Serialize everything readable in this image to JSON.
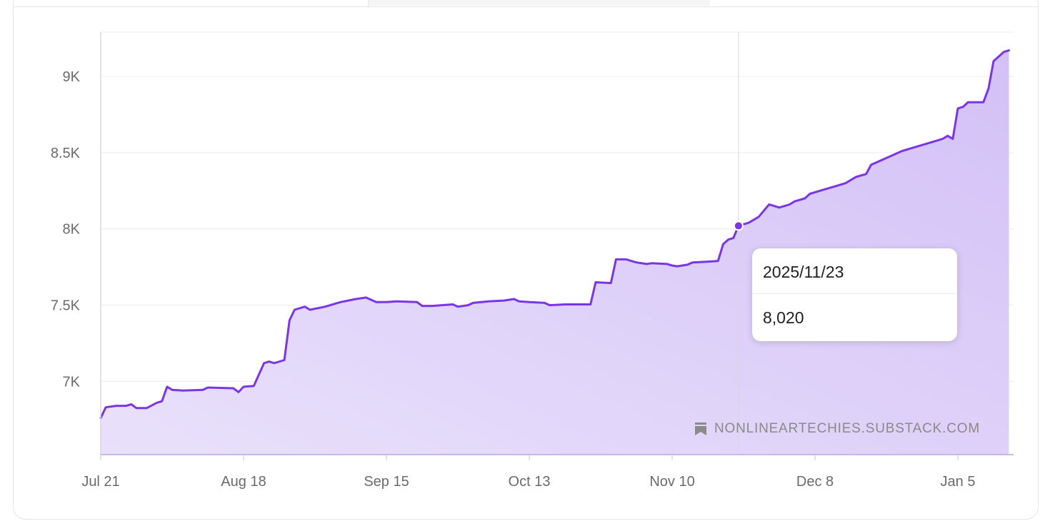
{
  "chart_data": {
    "type": "area",
    "x_tick_labels": [
      "Jul 21",
      "Aug 18",
      "Sep 15",
      "Oct 13",
      "Nov 10",
      "Dec 8",
      "Jan 5"
    ],
    "y_tick_labels": [
      "7K",
      "7.5K",
      "8K",
      "8.5K",
      "9K"
    ],
    "y_ticks": [
      7000,
      7500,
      8000,
      8500,
      9000
    ],
    "ylim": [
      6520,
      9290
    ],
    "x_start": "2025-07-21",
    "x_end": "2026-01-15",
    "grid": true,
    "series": [
      {
        "color": "#7a35e6",
        "fill": "#ddd0f8",
        "points": [
          [
            "2025-07-21",
            6760
          ],
          [
            "2025-07-22",
            6830
          ],
          [
            "2025-07-24",
            6840
          ],
          [
            "2025-07-26",
            6840
          ],
          [
            "2025-07-27",
            6850
          ],
          [
            "2025-07-28",
            6825
          ],
          [
            "2025-07-30",
            6825
          ],
          [
            "2025-08-01",
            6860
          ],
          [
            "2025-08-02",
            6870
          ],
          [
            "2025-08-03",
            6965
          ],
          [
            "2025-08-04",
            6945
          ],
          [
            "2025-08-06",
            6940
          ],
          [
            "2025-08-10",
            6945
          ],
          [
            "2025-08-11",
            6960
          ],
          [
            "2025-08-16",
            6955
          ],
          [
            "2025-08-17",
            6930
          ],
          [
            "2025-08-18",
            6965
          ],
          [
            "2025-08-20",
            6970
          ],
          [
            "2025-08-22",
            7120
          ],
          [
            "2025-08-23",
            7130
          ],
          [
            "2025-08-24",
            7120
          ],
          [
            "2025-08-26",
            7140
          ],
          [
            "2025-08-27",
            7400
          ],
          [
            "2025-08-28",
            7470
          ],
          [
            "2025-08-30",
            7490
          ],
          [
            "2025-08-31",
            7470
          ],
          [
            "2025-09-03",
            7490
          ],
          [
            "2025-09-06",
            7520
          ],
          [
            "2025-09-09",
            7540
          ],
          [
            "2025-09-11",
            7550
          ],
          [
            "2025-09-12",
            7535
          ],
          [
            "2025-09-13",
            7520
          ],
          [
            "2025-09-15",
            7520
          ],
          [
            "2025-09-17",
            7525
          ],
          [
            "2025-09-21",
            7520
          ],
          [
            "2025-09-22",
            7495
          ],
          [
            "2025-09-24",
            7495
          ],
          [
            "2025-09-28",
            7505
          ],
          [
            "2025-09-29",
            7490
          ],
          [
            "2025-10-01",
            7500
          ],
          [
            "2025-10-02",
            7515
          ],
          [
            "2025-10-05",
            7525
          ],
          [
            "2025-10-08",
            7530
          ],
          [
            "2025-10-10",
            7540
          ],
          [
            "2025-10-11",
            7525
          ],
          [
            "2025-10-13",
            7520
          ],
          [
            "2025-10-16",
            7515
          ],
          [
            "2025-10-17",
            7500
          ],
          [
            "2025-10-20",
            7505
          ],
          [
            "2025-10-25",
            7505
          ],
          [
            "2025-10-26",
            7650
          ],
          [
            "2025-10-29",
            7645
          ],
          [
            "2025-10-30",
            7800
          ],
          [
            "2025-11-01",
            7800
          ],
          [
            "2025-11-03",
            7780
          ],
          [
            "2025-11-05",
            7770
          ],
          [
            "2025-11-06",
            7775
          ],
          [
            "2025-11-09",
            7770
          ],
          [
            "2025-11-10",
            7760
          ],
          [
            "2025-11-11",
            7755
          ],
          [
            "2025-11-13",
            7765
          ],
          [
            "2025-11-14",
            7780
          ],
          [
            "2025-11-17",
            7785
          ],
          [
            "2025-11-19",
            7790
          ],
          [
            "2025-11-20",
            7900
          ],
          [
            "2025-11-21",
            7930
          ],
          [
            "2025-11-22",
            7940
          ],
          [
            "2025-11-23",
            8020
          ],
          [
            "2025-11-25",
            8040
          ],
          [
            "2025-11-26",
            8060
          ],
          [
            "2025-11-27",
            8080
          ],
          [
            "2025-11-29",
            8160
          ],
          [
            "2025-11-30",
            8150
          ],
          [
            "2025-12-01",
            8140
          ],
          [
            "2025-12-03",
            8160
          ],
          [
            "2025-12-04",
            8180
          ],
          [
            "2025-12-06",
            8200
          ],
          [
            "2025-12-07",
            8230
          ],
          [
            "2025-12-08",
            8240
          ],
          [
            "2025-12-10",
            8260
          ],
          [
            "2025-12-12",
            8280
          ],
          [
            "2025-12-14",
            8300
          ],
          [
            "2025-12-16",
            8340
          ],
          [
            "2025-12-18",
            8360
          ],
          [
            "2025-12-19",
            8420
          ],
          [
            "2025-12-21",
            8450
          ],
          [
            "2025-12-23",
            8480
          ],
          [
            "2025-12-25",
            8510
          ],
          [
            "2025-12-27",
            8530
          ],
          [
            "2025-12-29",
            8550
          ],
          [
            "2025-12-31",
            8570
          ],
          [
            "2026-01-02",
            8590
          ],
          [
            "2026-01-03",
            8610
          ],
          [
            "2026-01-04",
            8590
          ],
          [
            "2026-01-05",
            8790
          ],
          [
            "2026-01-06",
            8800
          ],
          [
            "2026-01-07",
            8830
          ],
          [
            "2026-01-10",
            8830
          ],
          [
            "2026-01-11",
            8920
          ],
          [
            "2026-01-12",
            9100
          ],
          [
            "2026-01-13",
            9130
          ],
          [
            "2026-01-14",
            9160
          ],
          [
            "2026-01-15",
            9170
          ]
        ]
      }
    ],
    "highlight": {
      "date": "2025-11-23",
      "value": 8020
    }
  },
  "tooltip": {
    "date_label": "2025/11/23",
    "value_label": "8,020"
  },
  "watermark": {
    "icon": "bookmark-icon",
    "text": "NONLINEARTECHIES.SUBSTACK.COM"
  }
}
